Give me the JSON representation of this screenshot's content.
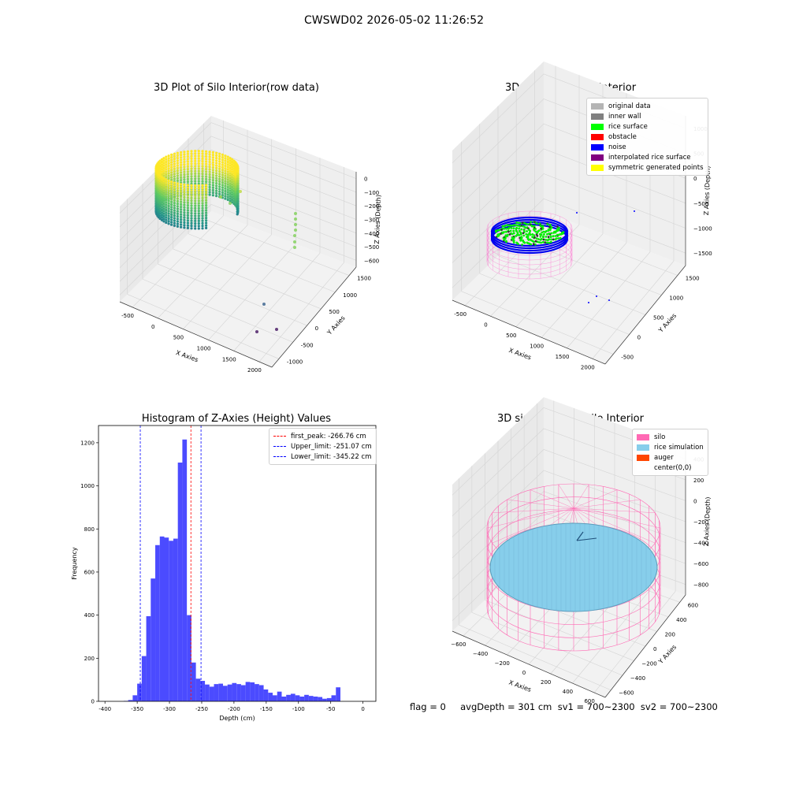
{
  "suptitle": "CWSWD02 2026-05-02 11:26:52",
  "footer": "flag = 0     avgDepth = 301 cm  sv1 = 700~2300  sv2 = 700~2300",
  "chart_data": [
    {
      "id": "raw",
      "type": "scatter",
      "projection": "3d",
      "title": "3D Plot of Silo Interior(row data)",
      "xlabel": "X Axies",
      "ylabel": "Y Axies",
      "zlabel": "Z Axies (Depth)",
      "x_ticks": [
        "-500",
        "0",
        "500",
        "1000",
        "1500",
        "2000"
      ],
      "y_ticks": [
        "-1000",
        "-500",
        "0",
        "500",
        "1000",
        "1500"
      ],
      "z_ticks": [
        "0",
        "−100",
        "−200",
        "−300",
        "−400",
        "−500",
        "−600"
      ],
      "colormap": "viridis",
      "grid": true
    },
    {
      "id": "classify",
      "type": "scatter",
      "projection": "3d",
      "title": "3D classify of Silo Interior",
      "xlabel": "X Axies",
      "ylabel": "Y Axies",
      "zlabel": "Z Axies (Depth)",
      "x_ticks": [
        "-500",
        "0",
        "500",
        "1000",
        "1500",
        "2000"
      ],
      "y_ticks": [
        "-500",
        "0",
        "500",
        "1000",
        "1500"
      ],
      "z_ticks": [
        "1000",
        "500",
        "0",
        "−500",
        "−1000",
        "−1500"
      ],
      "legend_position": "upper right",
      "legend": [
        {
          "label": "original data",
          "color": "#b4b4b4"
        },
        {
          "label": "inner wall",
          "color": "#808080"
        },
        {
          "label": "rice surface",
          "color": "#00ff00"
        },
        {
          "label": "obstacle",
          "color": "#ff0000"
        },
        {
          "label": "noise",
          "color": "#0000ff"
        },
        {
          "label": "interpolated rice surface",
          "color": "#800080"
        },
        {
          "label": "symmetric generated points",
          "color": "#ffff00"
        }
      ],
      "grid": true
    },
    {
      "id": "hist",
      "type": "bar",
      "title": "Histogram of Z-Axies (Height) Values",
      "xlabel": "Depth (cm)",
      "ylabel": "Frequency",
      "xlim": [
        -410,
        20
      ],
      "ylim": [
        0,
        1280
      ],
      "x_ticks": [
        -400,
        -350,
        -300,
        -250,
        -200,
        -150,
        -100,
        -50,
        0
      ],
      "y_ticks": [
        0,
        200,
        400,
        600,
        800,
        1000,
        1200
      ],
      "bar_color": "#4b4bff",
      "bin_width": 7,
      "bins_start": [
        -371,
        -364,
        -357,
        -350,
        -343,
        -336,
        -329,
        -322,
        -315,
        -308,
        -301,
        -294,
        -287,
        -280,
        -273,
        -266,
        -259,
        -252,
        -245,
        -238,
        -231,
        -224,
        -217,
        -210,
        -203,
        -196,
        -189,
        -182,
        -175,
        -168,
        -161,
        -154,
        -147,
        -140,
        -133,
        -126,
        -119,
        -112,
        -105,
        -98,
        -91,
        -84,
        -77,
        -70,
        -63,
        -56,
        -49,
        -42,
        -35,
        -28,
        -21,
        -14,
        -7
      ],
      "values": [
        2,
        6,
        28,
        82,
        210,
        395,
        570,
        725,
        765,
        760,
        745,
        755,
        1108,
        1215,
        400,
        180,
        105,
        95,
        78,
        68,
        80,
        82,
        72,
        78,
        85,
        80,
        75,
        90,
        88,
        80,
        75,
        55,
        40,
        28,
        45,
        22,
        30,
        35,
        28,
        22,
        30,
        25,
        22,
        20,
        12,
        15,
        28,
        65,
        0,
        0,
        0,
        0,
        0
      ],
      "vlines": [
        {
          "x": -266.76,
          "color": "#ff0000",
          "label": "first_peak: -266.76 cm"
        },
        {
          "x": -251.07,
          "color": "#0000ff",
          "label": "Upper_limit: -251.07 cm"
        },
        {
          "x": -345.22,
          "color": "#0000ff",
          "label": "Lower_limit: -345.22 cm"
        }
      ],
      "legend_position": "upper right"
    },
    {
      "id": "sim",
      "type": "scatter",
      "projection": "3d",
      "title": "3D simulation of Silo Interior",
      "xlabel": "X Axies",
      "ylabel": "Y Axies",
      "zlabel": "Z Axies (Depth)",
      "x_ticks": [
        "−600",
        "−400",
        "−200",
        "0",
        "200",
        "400",
        "600"
      ],
      "y_ticks": [
        "−600",
        "−400",
        "−200",
        "0",
        "200",
        "400",
        "600"
      ],
      "z_ticks": [
        "400",
        "200",
        "0",
        "−200",
        "−400",
        "−600",
        "−800"
      ],
      "legend_position": "upper right",
      "legend": [
        {
          "label": "silo",
          "color": "#ff69b4"
        },
        {
          "label": "rice simulation",
          "color": "#87ceeb"
        },
        {
          "label": "auger",
          "color": "#ff4500"
        },
        {
          "label": "center(0,0)",
          "color": "#ffffff"
        }
      ],
      "grid": true
    }
  ]
}
